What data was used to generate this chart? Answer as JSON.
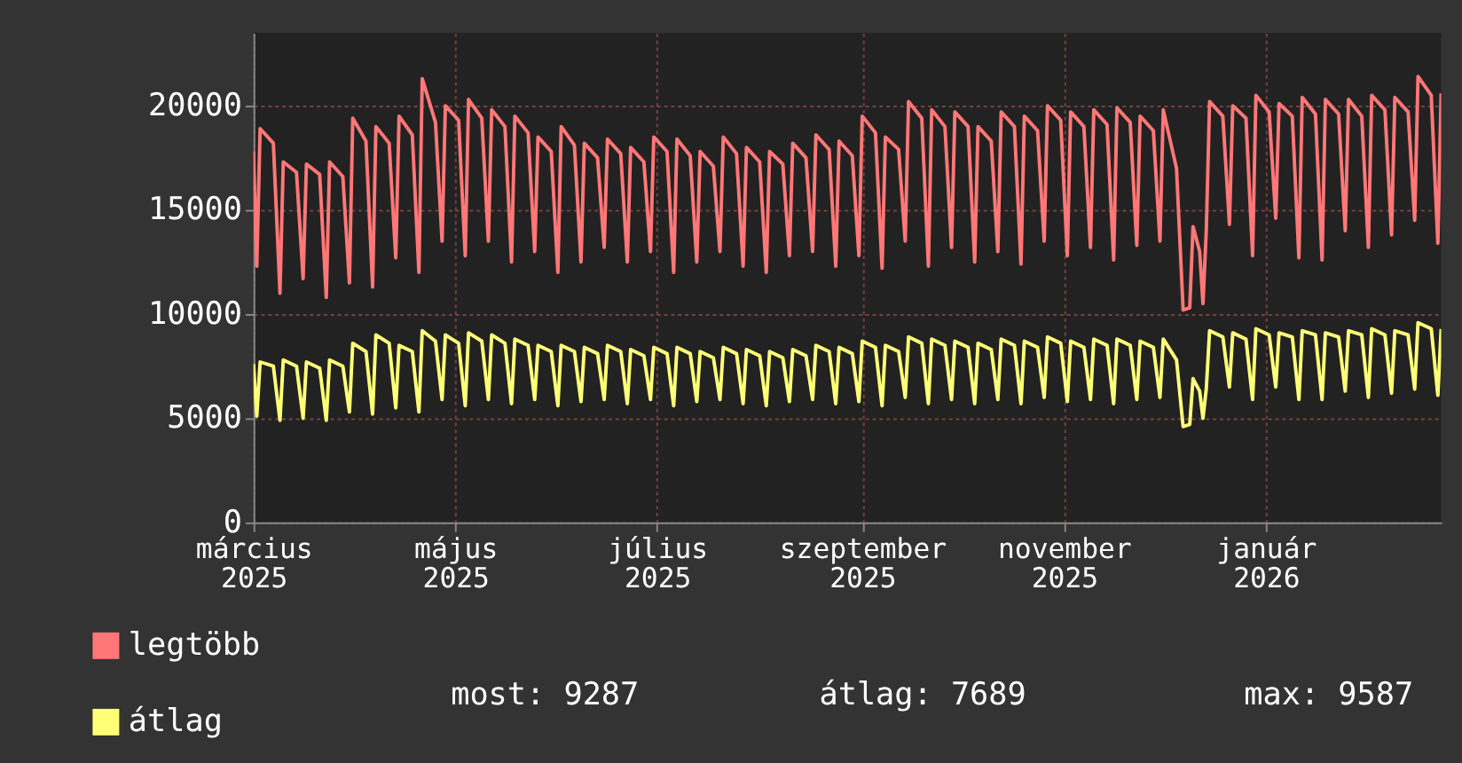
{
  "chart_data": {
    "type": "line",
    "x": [
      "2025-03-01",
      "2025-03-02",
      "2025-03-03",
      "2025-03-07",
      "2025-03-09",
      "2025-03-10",
      "2025-03-14",
      "2025-03-16",
      "2025-03-17",
      "2025-03-21",
      "2025-03-23",
      "2025-03-24",
      "2025-03-28",
      "2025-03-30",
      "2025-03-31",
      "2025-04-04",
      "2025-04-06",
      "2025-04-07",
      "2025-04-11",
      "2025-04-13",
      "2025-04-14",
      "2025-04-18",
      "2025-04-20",
      "2025-04-21",
      "2025-04-25",
      "2025-04-27",
      "2025-04-28",
      "2025-05-02",
      "2025-05-04",
      "2025-05-05",
      "2025-05-09",
      "2025-05-11",
      "2025-05-12",
      "2025-05-16",
      "2025-05-18",
      "2025-05-19",
      "2025-05-23",
      "2025-05-25",
      "2025-05-26",
      "2025-05-30",
      "2025-06-01",
      "2025-06-02",
      "2025-06-06",
      "2025-06-08",
      "2025-06-09",
      "2025-06-13",
      "2025-06-15",
      "2025-06-16",
      "2025-06-20",
      "2025-06-22",
      "2025-06-23",
      "2025-06-27",
      "2025-06-29",
      "2025-06-30",
      "2025-07-04",
      "2025-07-06",
      "2025-07-07",
      "2025-07-11",
      "2025-07-13",
      "2025-07-14",
      "2025-07-18",
      "2025-07-20",
      "2025-07-21",
      "2025-07-25",
      "2025-07-27",
      "2025-07-28",
      "2025-08-01",
      "2025-08-03",
      "2025-08-04",
      "2025-08-08",
      "2025-08-10",
      "2025-08-11",
      "2025-08-15",
      "2025-08-17",
      "2025-08-18",
      "2025-08-22",
      "2025-08-24",
      "2025-08-25",
      "2025-08-29",
      "2025-08-31",
      "2025-09-01",
      "2025-09-05",
      "2025-09-07",
      "2025-09-08",
      "2025-09-12",
      "2025-09-14",
      "2025-09-15",
      "2025-09-19",
      "2025-09-21",
      "2025-09-22",
      "2025-09-26",
      "2025-09-28",
      "2025-09-29",
      "2025-10-03",
      "2025-10-05",
      "2025-10-06",
      "2025-10-10",
      "2025-10-12",
      "2025-10-13",
      "2025-10-17",
      "2025-10-19",
      "2025-10-20",
      "2025-10-24",
      "2025-10-26",
      "2025-10-27",
      "2025-10-31",
      "2025-11-02",
      "2025-11-03",
      "2025-11-07",
      "2025-11-09",
      "2025-11-10",
      "2025-11-14",
      "2025-11-16",
      "2025-11-17",
      "2025-11-21",
      "2025-11-23",
      "2025-11-24",
      "2025-11-28",
      "2025-11-30",
      "2025-12-01",
      "2025-12-05",
      "2025-12-07",
      "2025-12-09",
      "2025-12-10",
      "2025-12-12",
      "2025-12-13",
      "2025-12-14",
      "2025-12-15",
      "2025-12-19",
      "2025-12-21",
      "2025-12-22",
      "2025-12-26",
      "2025-12-28",
      "2025-12-29",
      "2026-01-02",
      "2026-01-04",
      "2026-01-05",
      "2026-01-09",
      "2026-01-11",
      "2026-01-12",
      "2026-01-16",
      "2026-01-18",
      "2026-01-19",
      "2026-01-23",
      "2026-01-25",
      "2026-01-26",
      "2026-01-30",
      "2026-02-01",
      "2026-02-02",
      "2026-02-06",
      "2026-02-08",
      "2026-02-09",
      "2026-02-13",
      "2026-02-15",
      "2026-02-16",
      "2026-02-20",
      "2026-02-22",
      "2026-02-23"
    ],
    "series": [
      {
        "name": "legtöbb",
        "color": "#ff7777",
        "values": [
          17800,
          12300,
          18900,
          18200,
          11000,
          17300,
          16800,
          11700,
          17200,
          16700,
          10800,
          17300,
          16600,
          11500,
          19400,
          18300,
          11300,
          19000,
          18200,
          12700,
          19500,
          18600,
          12000,
          21300,
          19200,
          13500,
          20000,
          19300,
          12800,
          20300,
          19400,
          13500,
          19800,
          19000,
          12500,
          19500,
          18700,
          13000,
          18500,
          17800,
          12000,
          19000,
          18100,
          12500,
          18200,
          17500,
          13200,
          18400,
          17700,
          12500,
          18000,
          17300,
          13000,
          18500,
          17800,
          12000,
          18400,
          17600,
          12500,
          17800,
          17100,
          13000,
          18500,
          17700,
          12300,
          18000,
          17300,
          12000,
          17800,
          17200,
          12800,
          18200,
          17500,
          13000,
          18600,
          17900,
          12300,
          18300,
          17600,
          12800,
          19500,
          18700,
          12200,
          18500,
          17900,
          13500,
          20200,
          19400,
          12300,
          19800,
          19000,
          13200,
          19700,
          19000,
          12500,
          19000,
          18300,
          13000,
          19700,
          19000,
          12400,
          19500,
          18800,
          13500,
          20000,
          19300,
          12800,
          19700,
          19000,
          13200,
          19800,
          19100,
          12600,
          19900,
          19200,
          13300,
          19500,
          18800,
          13500,
          19800,
          17000,
          10200,
          10300,
          14200,
          13000,
          10500,
          14000,
          20200,
          19500,
          14300,
          20000,
          19400,
          12800,
          20500,
          19700,
          14600,
          20100,
          19500,
          12700,
          20400,
          19600,
          12600,
          20300,
          19600,
          14000,
          20300,
          19500,
          13200,
          20500,
          19800,
          13800,
          20400,
          19700,
          14500,
          21400,
          20500,
          13400,
          20600
        ]
      },
      {
        "name": "átlag",
        "color": "#ffff77",
        "values": [
          7600,
          5100,
          7700,
          7500,
          4900,
          7800,
          7500,
          5000,
          7700,
          7400,
          4900,
          7800,
          7500,
          5300,
          8600,
          8200,
          5200,
          9000,
          8600,
          5500,
          8500,
          8200,
          5300,
          9200,
          8700,
          5900,
          9000,
          8600,
          5600,
          9100,
          8700,
          5900,
          9000,
          8600,
          5700,
          8800,
          8500,
          5900,
          8500,
          8200,
          5600,
          8500,
          8200,
          5800,
          8400,
          8100,
          5900,
          8500,
          8200,
          5700,
          8300,
          8000,
          5900,
          8400,
          8100,
          5600,
          8400,
          8100,
          5800,
          8200,
          7900,
          5900,
          8400,
          8100,
          5700,
          8300,
          8000,
          5600,
          8200,
          7900,
          5800,
          8300,
          8000,
          5900,
          8500,
          8200,
          5700,
          8400,
          8100,
          5800,
          8700,
          8400,
          5600,
          8500,
          8200,
          6000,
          8900,
          8600,
          5700,
          8800,
          8500,
          5900,
          8700,
          8400,
          5700,
          8600,
          8300,
          5900,
          8800,
          8500,
          5700,
          8700,
          8400,
          6000,
          8900,
          8600,
          5800,
          8700,
          8400,
          5900,
          8800,
          8500,
          5700,
          8800,
          8500,
          5900,
          8700,
          8400,
          6000,
          8800,
          7800,
          4600,
          4700,
          6900,
          6300,
          5000,
          6400,
          9200,
          8900,
          6500,
          9100,
          8800,
          5900,
          9300,
          9000,
          6500,
          9100,
          8900,
          5900,
          9200,
          9000,
          5900,
          9100,
          8900,
          6300,
          9200,
          9000,
          6000,
          9300,
          9000,
          6200,
          9200,
          9000,
          6400,
          9587,
          9300,
          6100,
          9287
        ]
      }
    ],
    "xlim": [
      "2025-03-01",
      "2026-02-23"
    ],
    "xticks": [
      {
        "value": "2025-03-01",
        "label": "március 2025"
      },
      {
        "value": "2025-05-01",
        "label": "május 2025"
      },
      {
        "value": "2025-07-01",
        "label": "július 2025"
      },
      {
        "value": "2025-09-01",
        "label": "szeptember 2025"
      },
      {
        "value": "2025-11-01",
        "label": "november 2025"
      },
      {
        "value": "2026-01-01",
        "label": "január 2026"
      }
    ],
    "ylim": [
      0,
      23500
    ],
    "yticks": [
      0,
      5000,
      10000,
      15000,
      20000
    ],
    "grid": true,
    "legend": "bottom",
    "annotations": [
      "most: 9287",
      "átlag: 7689",
      "max: 9587"
    ]
  }
}
